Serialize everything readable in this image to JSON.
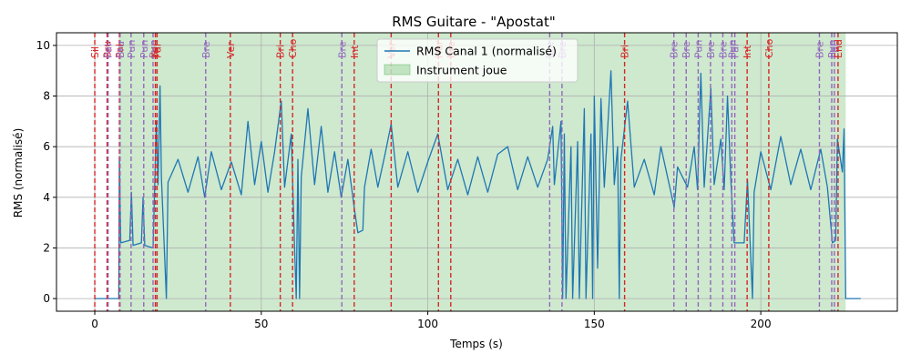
{
  "chart_data": {
    "type": "line",
    "title": "RMS Guitare - \"Apostat\"",
    "xlabel": "Temps (s)",
    "ylabel": "RMS (normalisé)",
    "xlim": [
      -11.5,
      241
    ],
    "ylim": [
      -0.5,
      10.5
    ],
    "x_ticks": [
      0,
      50,
      100,
      150,
      200
    ],
    "y_ticks": [
      0,
      2,
      4,
      6,
      8,
      10
    ],
    "grid": true,
    "legend_placement": "top-center",
    "series": [
      {
        "name": "RMS Canal 1 (normalisé)",
        "color": "#1f77b4",
        "points": [
          [
            0,
            0
          ],
          [
            7.2,
            0
          ],
          [
            7.4,
            5.6
          ],
          [
            7.8,
            2.2
          ],
          [
            10.5,
            2.3
          ],
          [
            11,
            4.2
          ],
          [
            11.5,
            2.1
          ],
          [
            14,
            2.2
          ],
          [
            14.5,
            4.0
          ],
          [
            15,
            2.1
          ],
          [
            17.5,
            2.0
          ],
          [
            18,
            4.5
          ],
          [
            18.5,
            7.0
          ],
          [
            19,
            4.5
          ],
          [
            19.6,
            8.4
          ],
          [
            20,
            4.8
          ],
          [
            21.5,
            0
          ],
          [
            22,
            4.6
          ],
          [
            25,
            5.5
          ],
          [
            28,
            4.2
          ],
          [
            31,
            5.6
          ],
          [
            33,
            4.0
          ],
          [
            35,
            5.8
          ],
          [
            38,
            4.3
          ],
          [
            41,
            5.4
          ],
          [
            44,
            4.1
          ],
          [
            46,
            7.0
          ],
          [
            48,
            4.5
          ],
          [
            50,
            6.2
          ],
          [
            52,
            4.2
          ],
          [
            54,
            5.8
          ],
          [
            56,
            7.8
          ],
          [
            57,
            4.4
          ],
          [
            59,
            6.5
          ],
          [
            60,
            2.0
          ],
          [
            60.5,
            0
          ],
          [
            61,
            5.5
          ],
          [
            61.5,
            0
          ],
          [
            62,
            4.8
          ],
          [
            64,
            7.5
          ],
          [
            66,
            4.5
          ],
          [
            68,
            6.8
          ],
          [
            70,
            4.2
          ],
          [
            72,
            5.8
          ],
          [
            74,
            4.0
          ],
          [
            76,
            5.5
          ],
          [
            78,
            3.5
          ],
          [
            79,
            2.6
          ],
          [
            80.5,
            2.7
          ],
          [
            81,
            4.4
          ],
          [
            83,
            5.9
          ],
          [
            85,
            4.4
          ],
          [
            87,
            5.6
          ],
          [
            89,
            6.9
          ],
          [
            91,
            4.4
          ],
          [
            94,
            5.8
          ],
          [
            97,
            4.2
          ],
          [
            100,
            5.4
          ],
          [
            103,
            6.5
          ],
          [
            106,
            4.3
          ],
          [
            109,
            5.5
          ],
          [
            112,
            4.1
          ],
          [
            115,
            5.6
          ],
          [
            118,
            4.2
          ],
          [
            121,
            5.7
          ],
          [
            124,
            6.0
          ],
          [
            127,
            4.3
          ],
          [
            130,
            5.6
          ],
          [
            133,
            4.4
          ],
          [
            136,
            5.5
          ],
          [
            137.5,
            6.8
          ],
          [
            138,
            4.5
          ],
          [
            140,
            7.0
          ],
          [
            140.5,
            0
          ],
          [
            141,
            6.5
          ],
          [
            141.5,
            0
          ],
          [
            143,
            6.0
          ],
          [
            143.5,
            0
          ],
          [
            145,
            6.2
          ],
          [
            145.5,
            0
          ],
          [
            147,
            7.5
          ],
          [
            147.5,
            0
          ],
          [
            149,
            6.5
          ],
          [
            149.5,
            0
          ],
          [
            150,
            8.0
          ],
          [
            151,
            1.2
          ],
          [
            152,
            7.9
          ],
          [
            153,
            4.4
          ],
          [
            155,
            9.0
          ],
          [
            156,
            4.5
          ],
          [
            157,
            6.0
          ],
          [
            157.5,
            0
          ],
          [
            158,
            5.5
          ],
          [
            160,
            7.8
          ],
          [
            162,
            4.4
          ],
          [
            165,
            5.5
          ],
          [
            168,
            4.1
          ],
          [
            170,
            6.0
          ],
          [
            173,
            4.2
          ],
          [
            174,
            3.6
          ],
          [
            175,
            5.2
          ],
          [
            178,
            4.4
          ],
          [
            180,
            6.0
          ],
          [
            181,
            4.3
          ],
          [
            182,
            8.9
          ],
          [
            183,
            4.4
          ],
          [
            185,
            8.3
          ],
          [
            186,
            4.5
          ],
          [
            188,
            6.3
          ],
          [
            189,
            4.3
          ],
          [
            190,
            8.0
          ],
          [
            191,
            4.7
          ],
          [
            192,
            2.2
          ],
          [
            195,
            2.2
          ],
          [
            196,
            4.7
          ],
          [
            197.5,
            0
          ],
          [
            198,
            4.2
          ],
          [
            200,
            5.8
          ],
          [
            203,
            4.3
          ],
          [
            206,
            6.4
          ],
          [
            209,
            4.5
          ],
          [
            212,
            5.9
          ],
          [
            215,
            4.3
          ],
          [
            218,
            5.9
          ],
          [
            220,
            4.4
          ],
          [
            221.5,
            2.2
          ],
          [
            222.5,
            2.3
          ],
          [
            223,
            6.3
          ],
          [
            224.5,
            5.0
          ],
          [
            225,
            6.7
          ],
          [
            225.5,
            0
          ],
          [
            230,
            0
          ]
        ]
      }
    ],
    "shaded_region": {
      "label": "Instrument joue",
      "x_start": 7.2,
      "x_end": 225.5,
      "color": "#2ca02c"
    },
    "markers": [
      {
        "x": 0.0,
        "label": "Sil",
        "color": "#d62728"
      },
      {
        "x": 3.7,
        "label": "Bru",
        "color": "#d62728"
      },
      {
        "x": 4.0,
        "label": "Pal",
        "color": "#9467bd"
      },
      {
        "x": 7.4,
        "label": "Pal",
        "color": "#d62728"
      },
      {
        "x": 7.6,
        "label": "Bru",
        "color": "#9467bd"
      },
      {
        "x": 10.9,
        "label": "Pun",
        "color": "#9467bd"
      },
      {
        "x": 14.7,
        "label": "Pun",
        "color": "#9467bd"
      },
      {
        "x": 17.5,
        "label": "Pun",
        "color": "#9467bd"
      },
      {
        "x": 18.2,
        "label": "Tri",
        "color": "#d62728"
      },
      {
        "x": 18.7,
        "label": "Pal",
        "color": "#d62728"
      },
      {
        "x": 33.3,
        "label": "Bre",
        "color": "#9467bd"
      },
      {
        "x": 40.7,
        "label": "Ver",
        "color": "#d62728"
      },
      {
        "x": 55.7,
        "label": "Bri",
        "color": "#d62728"
      },
      {
        "x": 59.4,
        "label": "Cho",
        "color": "#d62728"
      },
      {
        "x": 74.2,
        "label": "Bre",
        "color": "#9467bd"
      },
      {
        "x": 77.9,
        "label": "Int",
        "color": "#d62728"
      },
      {
        "x": 89.0,
        "label": "Ver",
        "color": "#d62728"
      },
      {
        "x": 103.2,
        "label": "Har",
        "color": "#d62728"
      },
      {
        "x": 106.9,
        "label": "Bre",
        "color": "#d62728"
      },
      {
        "x": 136.6,
        "label": "Bre",
        "color": "#9467bd"
      },
      {
        "x": 140.3,
        "label": "Bre",
        "color": "#9467bd"
      },
      {
        "x": 159.1,
        "label": "Bri",
        "color": "#d62728"
      },
      {
        "x": 173.9,
        "label": "Bre",
        "color": "#9467bd"
      },
      {
        "x": 177.6,
        "label": "Bre",
        "color": "#9467bd"
      },
      {
        "x": 181.2,
        "label": "Pun",
        "color": "#9467bd"
      },
      {
        "x": 184.9,
        "label": "Bre",
        "color": "#9467bd"
      },
      {
        "x": 188.6,
        "label": "Bre",
        "color": "#9467bd"
      },
      {
        "x": 191.3,
        "label": "Pun",
        "color": "#9467bd"
      },
      {
        "x": 192.2,
        "label": "Pal",
        "color": "#9467bd"
      },
      {
        "x": 195.9,
        "label": "Int",
        "color": "#d62728"
      },
      {
        "x": 202.4,
        "label": "Cho",
        "color": "#d62728"
      },
      {
        "x": 217.6,
        "label": "Bre",
        "color": "#9467bd"
      },
      {
        "x": 221.3,
        "label": "Pun",
        "color": "#9467bd"
      },
      {
        "x": 222.1,
        "label": "Pal",
        "color": "#9467bd"
      },
      {
        "x": 223.2,
        "label": "End",
        "color": "#d62728"
      }
    ]
  }
}
